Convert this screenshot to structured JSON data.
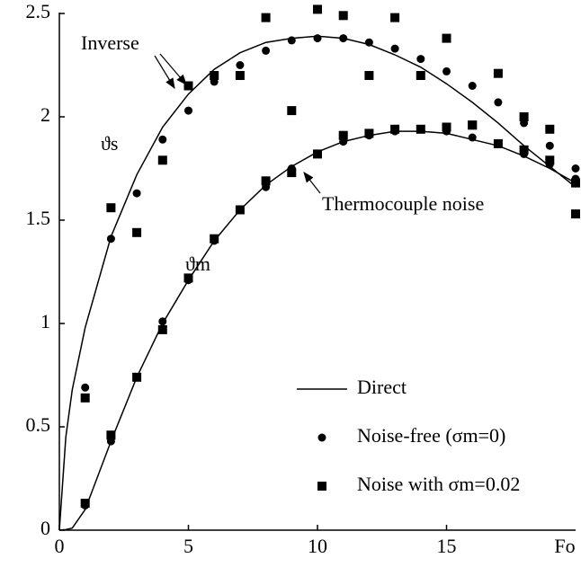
{
  "chart_data": {
    "type": "scatter",
    "x_label": "Fo",
    "xlim": [
      0,
      20
    ],
    "xticks": [
      0,
      5,
      10,
      15
    ],
    "ylim": [
      0,
      2.5
    ],
    "yticks": [
      0,
      0.5,
      1,
      1.5,
      2,
      2.5
    ],
    "color": "#000000",
    "legend": [
      {
        "name": "Direct",
        "marker": "line"
      },
      {
        "name": "Noise-free (σm=0)",
        "marker": "circle"
      },
      {
        "name": "Noise with σm=0.02",
        "marker": "square"
      }
    ],
    "x": [
      1,
      2,
      3,
      4,
      5,
      6,
      7,
      8,
      9,
      10,
      11,
      12,
      13,
      14,
      15,
      16,
      17,
      18,
      19,
      20
    ],
    "line_x": [
      0,
      0.25,
      0.5,
      1,
      2,
      3,
      4,
      5,
      6,
      7,
      8,
      9,
      10,
      11,
      12,
      13,
      14,
      15,
      16,
      17,
      18,
      19,
      20
    ],
    "curves": [
      {
        "label": "ϑs",
        "direct": [
          0,
          0.45,
          0.68,
          0.98,
          1.42,
          1.72,
          1.95,
          2.11,
          2.23,
          2.31,
          2.36,
          2.38,
          2.39,
          2.38,
          2.35,
          2.3,
          2.24,
          2.16,
          2.07,
          1.97,
          1.86,
          1.76,
          1.66
        ],
        "noise_free": [
          0.69,
          1.41,
          1.63,
          1.89,
          2.03,
          2.17,
          2.25,
          2.32,
          2.37,
          2.38,
          2.38,
          2.36,
          2.33,
          2.28,
          2.22,
          2.15,
          2.07,
          1.97,
          1.86,
          1.75
        ],
        "noisy": [
          0.64,
          1.56,
          1.44,
          1.79,
          2.15,
          2.2,
          2.2,
          2.48,
          2.03,
          2.52,
          2.49,
          2.2,
          2.48,
          2.2,
          2.38,
          1.96,
          2.21,
          2.0,
          1.94,
          1.53
        ]
      },
      {
        "label": "ϑm",
        "direct": [
          0,
          0.003,
          0.01,
          0.1,
          0.43,
          0.74,
          1.0,
          1.21,
          1.4,
          1.55,
          1.67,
          1.76,
          1.83,
          1.88,
          1.91,
          1.93,
          1.93,
          1.92,
          1.89,
          1.86,
          1.81,
          1.75,
          1.68
        ],
        "noise_free": [
          0.12,
          0.43,
          0.74,
          1.01,
          1.21,
          1.4,
          1.55,
          1.66,
          1.75,
          1.82,
          1.88,
          1.91,
          1.93,
          1.94,
          1.93,
          1.9,
          1.87,
          1.82,
          1.77,
          1.7
        ],
        "noisy": [
          0.13,
          0.46,
          0.74,
          0.97,
          1.22,
          1.41,
          1.55,
          1.69,
          1.73,
          1.82,
          1.91,
          1.92,
          1.94,
          1.94,
          1.95,
          1.96,
          1.87,
          1.84,
          1.79,
          1.68
        ]
      }
    ],
    "annotations": [
      {
        "text": "Inverse"
      },
      {
        "text": "Thermocouple noise"
      }
    ]
  }
}
